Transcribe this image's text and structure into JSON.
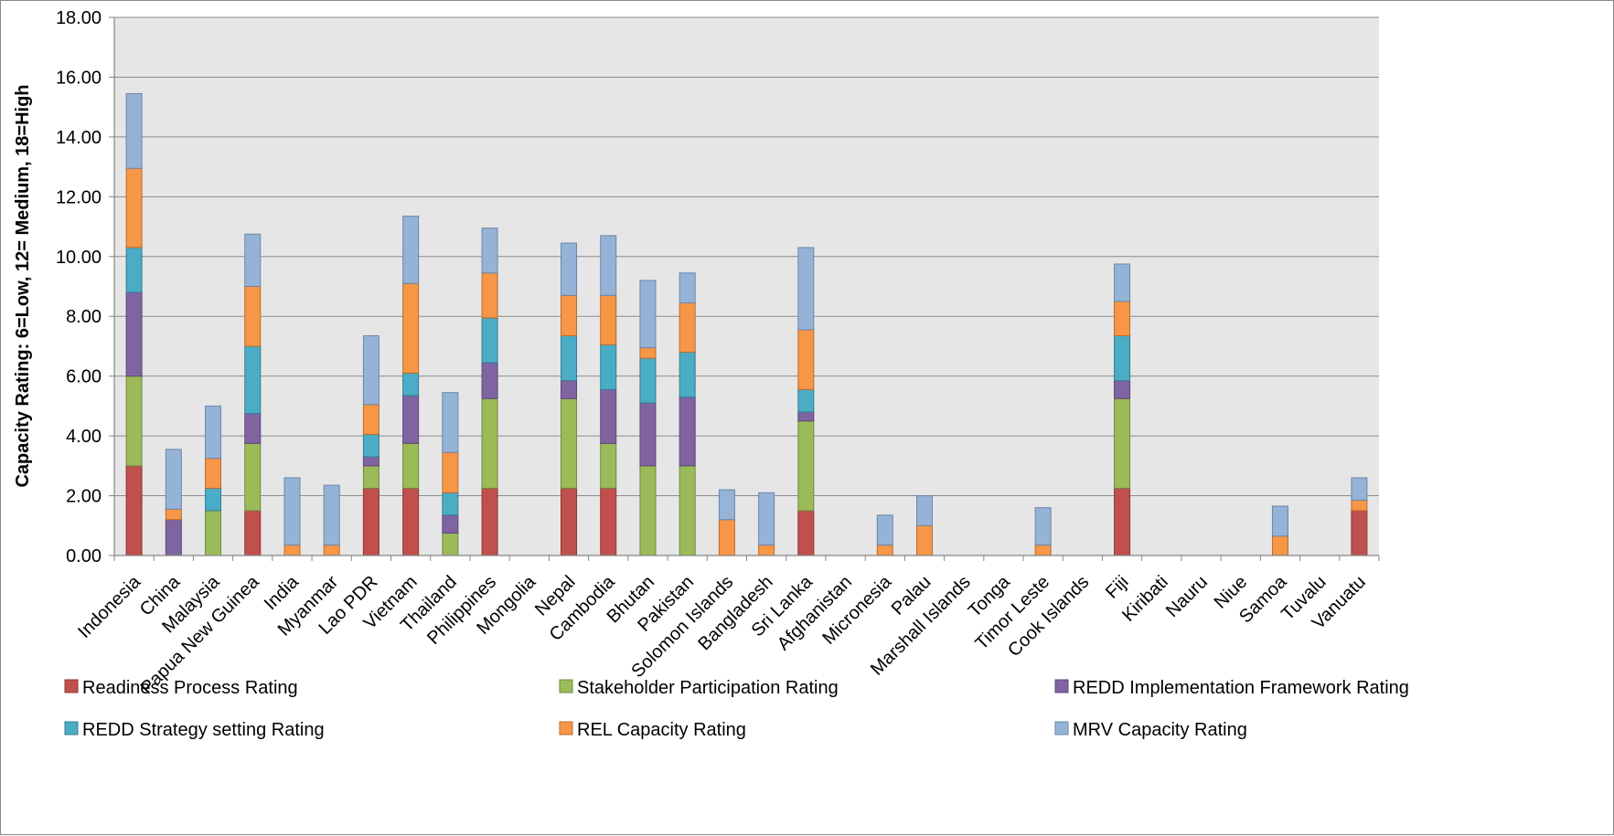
{
  "chart_data": {
    "type": "bar",
    "stacked": true,
    "title": "",
    "xlabel": "",
    "ylabel": "Capacity Rating: 6=Low, 12= Medium, 18=High",
    "ylim": [
      0,
      18
    ],
    "ytick_labels": [
      "0.00",
      "2.00",
      "4.00",
      "6.00",
      "8.00",
      "10.00",
      "12.00",
      "14.00",
      "16.00",
      "18.00"
    ],
    "grid": "horizontal",
    "legend_position": "bottom",
    "plot_background": "#e6e6e6",
    "categories": [
      "Indonesia",
      "China",
      "Malaysia",
      "Papua New Guinea",
      "India",
      "Myanmar",
      "Lao PDR",
      "Vietnam",
      "Thailand",
      "Philippines",
      "Mongolia",
      "Nepal",
      "Cambodia",
      "Bhutan",
      "Pakistan",
      "Solomon Islands",
      "Bangladesh",
      "Sri Lanka",
      "Afghanistan",
      "Micronesia",
      "Palau",
      "Marshall Islands",
      "Tonga",
      "Timor Leste",
      "Cook Islands",
      "Fiji",
      "Kiribati",
      "Nauru",
      "Niue",
      "Samoa",
      "Tuvalu",
      "Vanuatu"
    ],
    "series": [
      {
        "name": "Readiness Process Rating",
        "color": "#c0504d",
        "edge": "#8c3836",
        "values": [
          3,
          0,
          0,
          1.5,
          0,
          0,
          2.25,
          2.25,
          0,
          2.25,
          0,
          2.25,
          2.25,
          0,
          0,
          0,
          0,
          1.5,
          0,
          0,
          0,
          0,
          0,
          0,
          0,
          2.25,
          0,
          0,
          0,
          0,
          0,
          1.5
        ]
      },
      {
        "name": "Stakeholder Participation Rating",
        "color": "#9bbb59",
        "edge": "#71893f",
        "values": [
          3,
          0,
          1.5,
          2.25,
          0,
          0,
          0.75,
          1.5,
          0.75,
          3,
          0,
          3,
          1.5,
          3,
          3,
          0,
          0,
          3,
          0,
          0,
          0,
          0,
          0,
          0,
          0,
          3,
          0,
          0,
          0,
          0,
          0,
          0
        ]
      },
      {
        "name": "REDD Implementation Framework Rating",
        "color": "#8064a2",
        "edge": "#5c4776",
        "values": [
          2.8,
          1.2,
          0,
          1,
          0,
          0,
          0.3,
          1.6,
          0.6,
          1.2,
          0,
          0.6,
          1.8,
          2.1,
          2.3,
          0,
          0,
          0.3,
          0,
          0,
          0,
          0,
          0,
          0,
          0,
          0.6,
          0,
          0,
          0,
          0,
          0,
          0
        ]
      },
      {
        "name": "REDD Strategy setting Rating",
        "color": "#4bacc6",
        "edge": "#357d91",
        "values": [
          1.5,
          0,
          0.75,
          2.25,
          0,
          0,
          0.75,
          0.75,
          0.75,
          1.5,
          0,
          1.5,
          1.5,
          1.5,
          1.5,
          0,
          0,
          0.75,
          0,
          0,
          0,
          0,
          0,
          0,
          0,
          1.5,
          0,
          0,
          0,
          0,
          0,
          0
        ]
      },
      {
        "name": "REL Capacity Rating",
        "color": "#f79646",
        "edge": "#b66d31",
        "values": [
          2.65,
          0.35,
          1,
          2,
          0.35,
          0.35,
          1,
          3,
          1.35,
          1.5,
          0,
          1.35,
          1.65,
          0.35,
          1.65,
          1.2,
          0.35,
          2,
          0,
          0.35,
          1,
          0,
          0,
          0.35,
          0,
          1.15,
          0,
          0,
          0,
          0.65,
          0,
          0.35
        ]
      },
      {
        "name": "MRV Capacity Rating",
        "color": "#95b3d7",
        "edge": "#6d86a6",
        "values": [
          2.5,
          2,
          1.75,
          1.75,
          2.25,
          2,
          2.3,
          2.25,
          2,
          1.5,
          0,
          1.75,
          2,
          2.25,
          1,
          1,
          1.75,
          2.75,
          0,
          1,
          1,
          0,
          0,
          1.25,
          0,
          1.25,
          0,
          0,
          0,
          1,
          0,
          0.75
        ]
      }
    ]
  }
}
